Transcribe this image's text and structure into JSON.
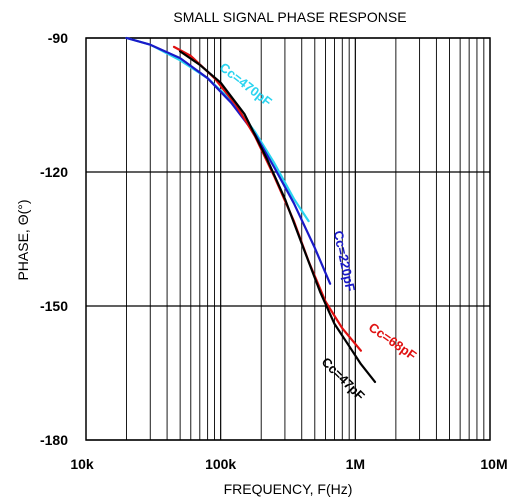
{
  "chart_data": {
    "type": "line",
    "title": "SMALL SIGNAL PHASE RESPONSE",
    "xlabel": "FREQUENCY, F(Hz)",
    "ylabel": "PHASE, Θ(°)",
    "xscale": "log",
    "xlim": [
      10000,
      10000000
    ],
    "ylim": [
      -180,
      -90
    ],
    "x_ticks": [
      {
        "value": 10000,
        "label": "10k"
      },
      {
        "value": 100000,
        "label": "100k"
      },
      {
        "value": 1000000,
        "label": "1M"
      },
      {
        "value": 10000000,
        "label": "10M"
      }
    ],
    "y_ticks": [
      {
        "value": -90,
        "label": "-90"
      },
      {
        "value": -120,
        "label": "-120"
      },
      {
        "value": -150,
        "label": "-150"
      },
      {
        "value": -180,
        "label": "-180"
      }
    ],
    "grid": true,
    "series": [
      {
        "name": "Cc=470pF",
        "color": "#2ad4f0",
        "x": [
          20000,
          30000,
          50000,
          80000,
          120000,
          180000,
          250000,
          350000,
          450000
        ],
        "y": [
          -90,
          -91.5,
          -95,
          -99,
          -104,
          -111,
          -118,
          -126,
          -131
        ]
      },
      {
        "name": "Cc=220pF",
        "color": "#1a1ac8",
        "x": [
          20000,
          30000,
          50000,
          80000,
          120000,
          180000,
          250000,
          350000,
          500000,
          650000
        ],
        "y": [
          -90,
          -91.5,
          -94.5,
          -99,
          -104.5,
          -111.5,
          -119,
          -127,
          -137,
          -145
        ]
      },
      {
        "name": "Cc=68pF",
        "color": "#e01010",
        "x": [
          45000,
          60000,
          90000,
          130000,
          180000,
          250000,
          350000,
          450000,
          600000,
          800000,
          1100000
        ],
        "y": [
          -92,
          -94,
          -99,
          -105,
          -112,
          -121,
          -131,
          -140,
          -149,
          -155,
          -160
        ]
      },
      {
        "name": "Cc=47pF",
        "color": "#000000",
        "x": [
          50000,
          70000,
          100000,
          150000,
          220000,
          300000,
          400000,
          550000,
          700000,
          900000,
          1100000,
          1400000
        ],
        "y": [
          -93,
          -96,
          -100,
          -107,
          -117,
          -126,
          -136,
          -147,
          -154,
          -159,
          -163,
          -167
        ]
      }
    ]
  }
}
